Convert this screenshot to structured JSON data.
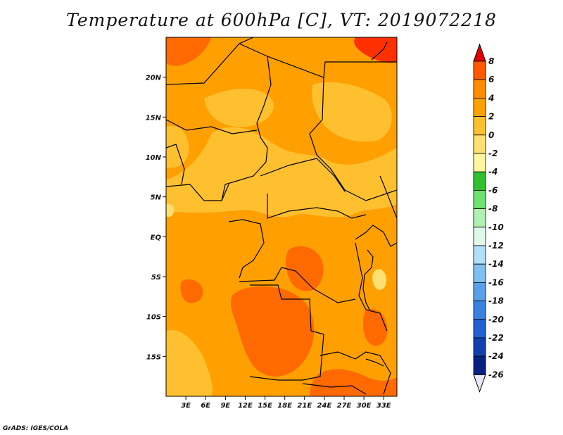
{
  "title": "Temperature at 600hPa [C], VT: 2019072218",
  "credit": "GrADS: IGES/COLA",
  "colors": {
    "field_base": "#ffa000",
    "field_warm": "#ff6a00",
    "field_cool": "#ffc030",
    "field_cooler": "#ffe070",
    "field_hot": "#ff3000",
    "border": "#000000"
  },
  "chart_data": {
    "type": "heatmap",
    "title": "Temperature at 600hPa [C], VT: 2019072218",
    "x_ticks": [
      "3E",
      "6E",
      "9E",
      "12E",
      "15E",
      "18E",
      "21E",
      "24E",
      "27E",
      "30E",
      "33E"
    ],
    "y_ticks": [
      "20N",
      "15N",
      "10N",
      "5N",
      "EQ",
      "5S",
      "10S",
      "15S"
    ],
    "xlim": [
      0,
      35
    ],
    "ylim": [
      -20,
      25
    ],
    "colorbar": {
      "labels": [
        "8",
        "6",
        "4",
        "2",
        "0",
        "-2",
        "-4",
        "-6",
        "-8",
        "-10",
        "-12",
        "-14",
        "-16",
        "-18",
        "-20",
        "-22",
        "-24",
        "-26"
      ],
      "colors": [
        "#ff2000",
        "#ff5800",
        "#ff8c00",
        "#ffa000",
        "#ffc030",
        "#ffe070",
        "#fff6a0",
        "#30c030",
        "#70e070",
        "#b0f0b0",
        "#e0f8e8",
        "#b0e0f8",
        "#80c0f0",
        "#5aa0e8",
        "#3a80e0",
        "#2060d0",
        "#1040b0",
        "#082080",
        "#000050"
      ],
      "top_arrow_color": "#e00000",
      "bottom_arrow_color": "#e8e8f8"
    }
  }
}
